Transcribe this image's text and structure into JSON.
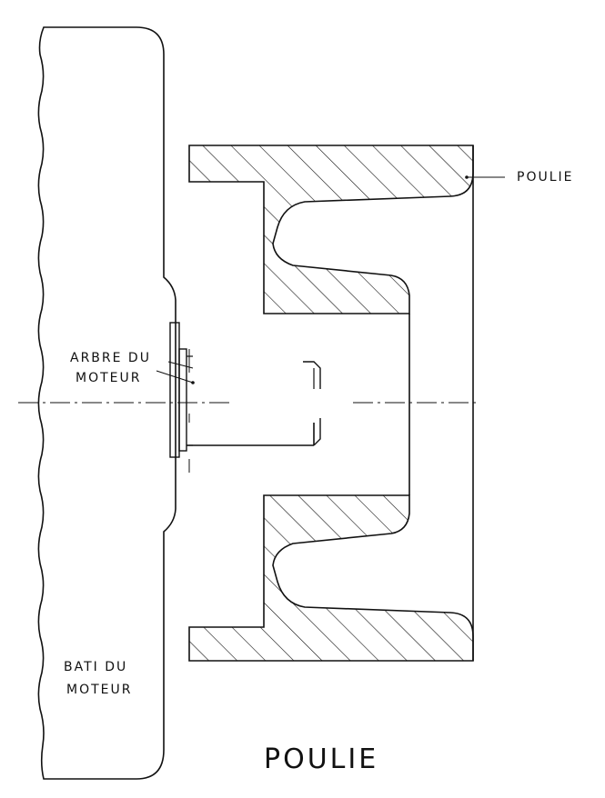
{
  "labels": {
    "poulie_callout": "POULIE",
    "arbre_line1": "ARBRE DU",
    "arbre_line2": "MOTEUR",
    "bati_line1": "BATI DU",
    "bati_line2": "MOTEUR",
    "title": "POULIE"
  },
  "colors": {
    "ink": "#111111",
    "paper": "#ffffff"
  }
}
